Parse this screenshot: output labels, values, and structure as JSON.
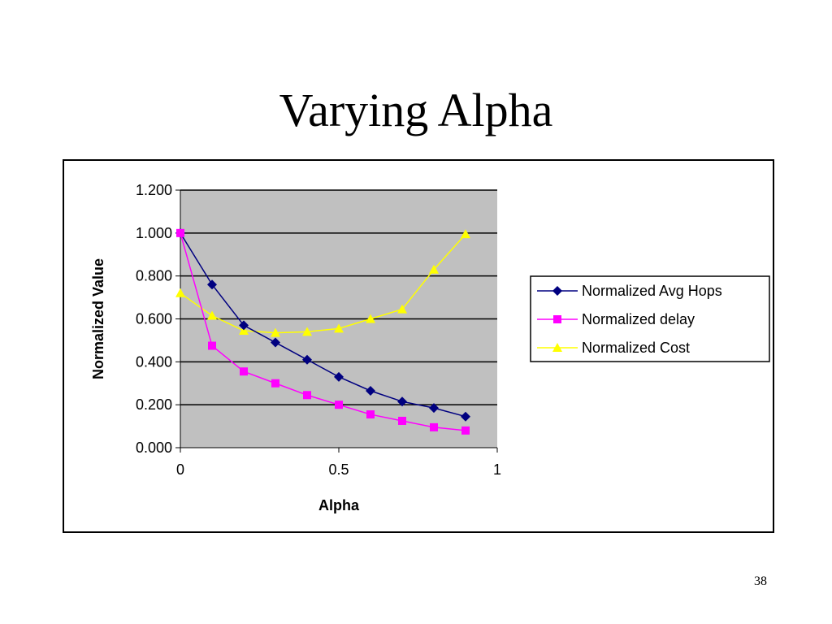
{
  "slide": {
    "title": "Varying Alpha",
    "page_number": "38"
  },
  "chart_data": {
    "type": "line",
    "title": "",
    "xlabel": "Alpha",
    "ylabel": "Normalized Value",
    "xlim": [
      0,
      1
    ],
    "ylim": [
      0,
      1.2
    ],
    "x_ticks": [
      "0",
      "0.5",
      "1"
    ],
    "y_ticks": [
      "0.000",
      "0.200",
      "0.400",
      "0.600",
      "0.800",
      "1.000",
      "1.200"
    ],
    "grid": "horizontal",
    "plot_background": "#c0c0c0",
    "legend_position": "right",
    "x": [
      0,
      0.1,
      0.2,
      0.3,
      0.4,
      0.5,
      0.6,
      0.7,
      0.8,
      0.9
    ],
    "series": [
      {
        "name": "Normalized Avg Hops",
        "color": "#000080",
        "marker": "diamond",
        "values": [
          1.0,
          0.76,
          0.57,
          0.49,
          0.41,
          0.33,
          0.265,
          0.215,
          0.185,
          0.145
        ]
      },
      {
        "name": "Normalized delay",
        "color": "#ff00ff",
        "marker": "square",
        "values": [
          1.0,
          0.475,
          0.355,
          0.3,
          0.245,
          0.2,
          0.155,
          0.125,
          0.095,
          0.08
        ]
      },
      {
        "name": "Normalized Cost",
        "color": "#ffff00",
        "marker": "triangle",
        "values": [
          0.72,
          0.615,
          0.545,
          0.535,
          0.54,
          0.555,
          0.6,
          0.645,
          0.83,
          0.995
        ]
      }
    ]
  }
}
